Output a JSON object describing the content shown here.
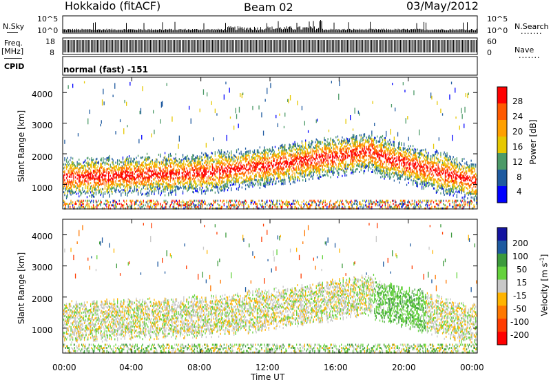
{
  "header": {
    "station": "Hokkaido (fitACF)",
    "beam": "Beam 02",
    "date": "03/May/2012"
  },
  "status": {
    "nsky_label": "N.Sky",
    "nsearch_label": "N.Search",
    "freq_label": "Freq.",
    "freq_unit": "[MHz]",
    "nave_label": "Nave",
    "cpid_label": "CPID",
    "cpid_value": "normal (fast) -151",
    "noise_ticks": [
      "10^5",
      "10^0"
    ],
    "freq_ticks": [
      "18",
      "8"
    ],
    "nave_ticks": [
      "60",
      "0"
    ],
    "dots": "......."
  },
  "chart_data": [
    {
      "type": "heatmap",
      "name": "power",
      "ylabel": "Slant Range [km]",
      "xlim": [
        "00:00",
        "00:00"
      ],
      "ylim": [
        200,
        4500
      ],
      "yticks": [
        "4000",
        "3000",
        "2000",
        "1000"
      ],
      "colorbar": {
        "label": "Power [dB]",
        "ticks": [
          "28",
          "24",
          "20",
          "16",
          "12",
          "8",
          "4"
        ],
        "colors": [
          "#ff0000",
          "#ff5a00",
          "#ffa000",
          "#e6c800",
          "#4c9a68",
          "#1e5aa0",
          "#0000ff"
        ]
      }
    },
    {
      "type": "heatmap",
      "name": "velocity",
      "ylabel": "Slant Range [km]",
      "xlabel": "Time UT",
      "xticks": [
        "00:00",
        "04:00",
        "08:00",
        "12:00",
        "16:00",
        "20:00",
        "00:00"
      ],
      "ylim": [
        200,
        4500
      ],
      "yticks": [
        "4000",
        "3000",
        "2000",
        "1000"
      ],
      "colorbar": {
        "label": "Velocity [m s",
        "label_exp": "-1",
        "label_close": "]",
        "ticks": [
          "200",
          "100",
          "50",
          "15",
          "-15",
          "-50",
          "-100",
          "-200"
        ],
        "colors": [
          "#1414a0",
          "#1e5aa0",
          "#3c9a3c",
          "#64d23c",
          "#c8c8c8",
          "#ffb400",
          "#ff7800",
          "#ff3c00",
          "#ff0000"
        ]
      }
    }
  ]
}
